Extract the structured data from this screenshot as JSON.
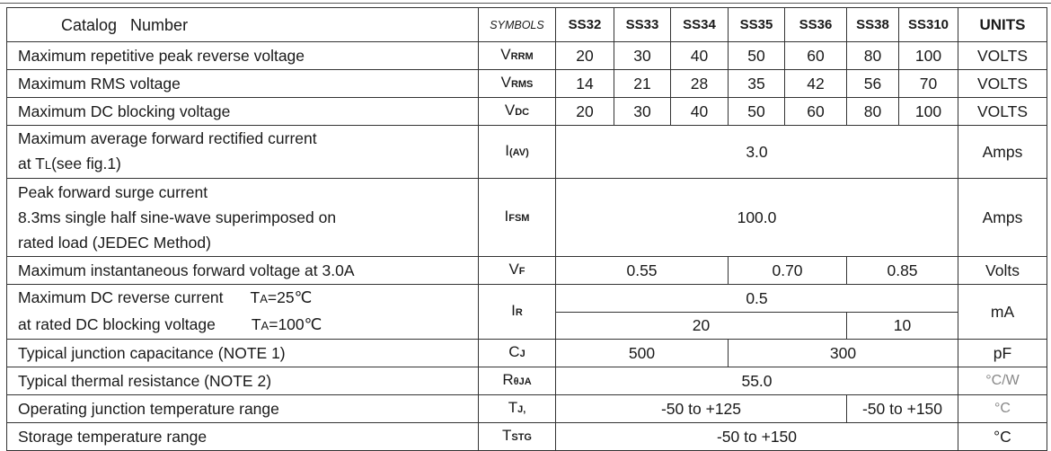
{
  "header": {
    "catalog": "Catalog   Number",
    "symbols": "SYMBOLS",
    "parts": [
      "SS32",
      "SS33",
      "SS34",
      "SS35",
      "SS36",
      "SS38",
      "SS310"
    ],
    "units": "UNITS"
  },
  "rows": {
    "vrrm": {
      "desc": "Maximum repetitive peak reverse voltage",
      "sym": "V",
      "sub": "RRM",
      "values": [
        "20",
        "30",
        "40",
        "50",
        "60",
        "80",
        "100"
      ],
      "unit": "VOLTS"
    },
    "vrms": {
      "desc": "Maximum RMS voltage",
      "sym": "V",
      "sub": "RMS",
      "values": [
        "14",
        "21",
        "28",
        "35",
        "42",
        "56",
        "70"
      ],
      "unit": "VOLTS"
    },
    "vdc": {
      "desc": "Maximum DC blocking voltage",
      "sym": "V",
      "sub": "DC",
      "values": [
        "20",
        "30",
        "40",
        "50",
        "60",
        "80",
        "100"
      ],
      "unit": "VOLTS"
    },
    "iav": {
      "desc1": "Maximum average forward rectified current",
      "desc2a": "at T",
      "desc2sub": "L",
      "desc2b": "(see fig.1)",
      "sym": "I",
      "sub": "(AV)",
      "value": "3.0",
      "unit": "Amps"
    },
    "ifsm": {
      "desc1": "Peak forward surge current",
      "desc2": "8.3ms single half sine-wave superimposed on",
      "desc3": "rated load (JEDEC Method)",
      "sym": "I",
      "sub": "FSM",
      "value": "100.0",
      "unit": "Amps"
    },
    "vf": {
      "desc": "Maximum instantaneous forward voltage at 3.0A",
      "sym": "V",
      "sub": "F",
      "values": [
        "0.55",
        "0.70",
        "0.85"
      ],
      "unit": "Volts"
    },
    "ir": {
      "desc1": "Maximum DC reverse current",
      "cond1a": "T",
      "cond1sub": "A",
      "cond1b": "=25℃",
      "desc2": "at rated DC blocking voltage",
      "cond2a": "T",
      "cond2sub": "A",
      "cond2b": "=100℃",
      "sym": "I",
      "sub": "R",
      "value_25": "0.5",
      "values_100": [
        "20",
        "10"
      ],
      "unit": "mA"
    },
    "cj": {
      "desc": "Typical junction capacitance (NOTE 1)",
      "sym": "C",
      "sub": "J",
      "values": [
        "500",
        "300"
      ],
      "unit": "pF"
    },
    "rthja": {
      "desc": "Typical thermal resistance (NOTE 2)",
      "sym": "R",
      "sub": "θJA",
      "value": "55.0",
      "unit": "°C/W"
    },
    "tj": {
      "desc": "Operating junction temperature range",
      "sym": "T",
      "sub": "J,",
      "values": [
        "-50 to +125",
        "-50 to +150"
      ],
      "unit": "°C"
    },
    "tstg": {
      "desc": "Storage temperature range",
      "sym": "T",
      "sub": "STG",
      "value": "-50 to +150",
      "unit": "°C"
    }
  }
}
